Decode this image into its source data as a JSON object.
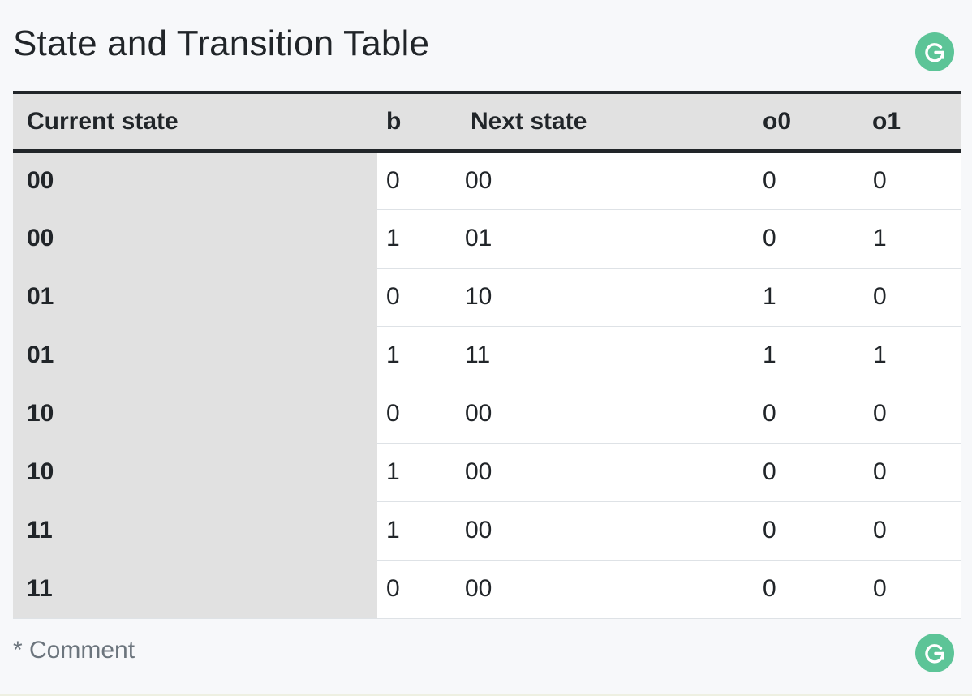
{
  "page": {
    "title": "State and Transition Table",
    "comment": "* Comment"
  },
  "table": {
    "headers": [
      "Current state",
      "b",
      "Next state",
      "o0",
      "o1"
    ],
    "rows": [
      [
        "00",
        "0",
        "00",
        "0",
        "0"
      ],
      [
        "00",
        "1",
        "01",
        "0",
        "1"
      ],
      [
        "01",
        "0",
        "10",
        "1",
        "0"
      ],
      [
        "01",
        "1",
        "11",
        "1",
        "1"
      ],
      [
        "10",
        "0",
        "00",
        "0",
        "0"
      ],
      [
        "10",
        "1",
        "00",
        "0",
        "0"
      ],
      [
        "11",
        "1",
        "00",
        "0",
        "0"
      ],
      [
        "11",
        "0",
        "00",
        "0",
        "0"
      ]
    ]
  },
  "icons": {
    "grammar_button": "grammarly-icon"
  },
  "colors": {
    "accent": "#5cc497",
    "header_bg": "#e1e1e1",
    "text": "#212529",
    "muted": "#6c757d"
  }
}
